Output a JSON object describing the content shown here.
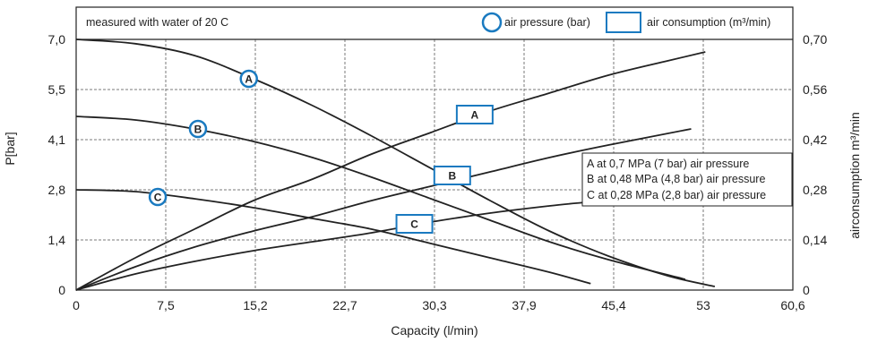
{
  "chart_data": {
    "type": "line",
    "note": "measured with water of 20 C",
    "legend": {
      "pressure_label": "air pressure (bar)",
      "consumption_label": "air consumption (m³/min)"
    },
    "xlabel": "Capacity (l/min)",
    "ylabel_left": "P[bar]",
    "ylabel_right": "airconsumption m³/min",
    "x_ticks": [
      "0",
      "7,5",
      "15,2",
      "22,7",
      "30,3",
      "37,9",
      "45,4",
      "53",
      "60,6"
    ],
    "y_left_ticks": [
      "0",
      "1,4",
      "2,8",
      "4,1",
      "5,5",
      "7,0"
    ],
    "y_right_ticks": [
      "0",
      "0,14",
      "0,28",
      "0,42",
      "0,56",
      "0,70"
    ],
    "xlim": [
      0,
      60.6
    ],
    "ylim_left": [
      0,
      7.0
    ],
    "ylim_right": [
      0,
      0.7
    ],
    "grid": true,
    "pressure_series": [
      {
        "name": "A",
        "label_at": [
          14.6,
          5.9
        ],
        "points": [
          [
            0,
            7.0
          ],
          [
            5,
            6.88
          ],
          [
            10,
            6.55
          ],
          [
            15,
            5.9
          ],
          [
            20,
            5.15
          ],
          [
            25,
            4.3
          ],
          [
            30,
            3.4
          ],
          [
            35,
            2.5
          ],
          [
            40,
            1.65
          ],
          [
            45,
            0.95
          ],
          [
            50,
            0.4
          ],
          [
            54,
            0.1
          ]
        ]
      },
      {
        "name": "B",
        "label_at": [
          10.3,
          4.5
        ],
        "points": [
          [
            0,
            4.85
          ],
          [
            5,
            4.75
          ],
          [
            10,
            4.5
          ],
          [
            15,
            4.15
          ],
          [
            20,
            3.7
          ],
          [
            25,
            3.15
          ],
          [
            30,
            2.55
          ],
          [
            35,
            1.95
          ],
          [
            40,
            1.35
          ],
          [
            45,
            0.85
          ],
          [
            51.5,
            0.3
          ]
        ]
      },
      {
        "name": "C",
        "label_at": [
          6.9,
          2.6
        ],
        "points": [
          [
            0,
            2.8
          ],
          [
            5,
            2.75
          ],
          [
            10,
            2.55
          ],
          [
            15,
            2.3
          ],
          [
            20,
            2.0
          ],
          [
            25,
            1.7
          ],
          [
            30,
            1.3
          ],
          [
            35,
            0.9
          ],
          [
            40,
            0.5
          ],
          [
            43.5,
            0.18
          ]
        ]
      }
    ],
    "consumption_series": [
      {
        "name": "A",
        "label_at": [
          33.7,
          0.49
        ],
        "points": [
          [
            0,
            0.0
          ],
          [
            5,
            0.09
          ],
          [
            10,
            0.17
          ],
          [
            15,
            0.25
          ],
          [
            20,
            0.31
          ],
          [
            25,
            0.38
          ],
          [
            30,
            0.44
          ],
          [
            35,
            0.5
          ],
          [
            40,
            0.55
          ],
          [
            45,
            0.6
          ],
          [
            50,
            0.64
          ],
          [
            53.2,
            0.665
          ]
        ]
      },
      {
        "name": "B",
        "label_at": [
          31.8,
          0.32
        ],
        "points": [
          [
            0,
            0.0
          ],
          [
            5,
            0.065
          ],
          [
            10,
            0.12
          ],
          [
            15,
            0.165
          ],
          [
            20,
            0.205
          ],
          [
            25,
            0.25
          ],
          [
            30,
            0.29
          ],
          [
            35,
            0.33
          ],
          [
            40,
            0.37
          ],
          [
            45,
            0.405
          ],
          [
            52,
            0.45
          ]
        ]
      },
      {
        "name": "C",
        "label_at": [
          28.6,
          0.185
        ],
        "points": [
          [
            0,
            0.0
          ],
          [
            5,
            0.045
          ],
          [
            10,
            0.08
          ],
          [
            15,
            0.11
          ],
          [
            20,
            0.135
          ],
          [
            25,
            0.16
          ],
          [
            30,
            0.19
          ],
          [
            35,
            0.215
          ],
          [
            40,
            0.235
          ],
          [
            43,
            0.245
          ]
        ]
      }
    ],
    "annotations": [
      "A  at 0,7 MPa (7 bar) air pressure",
      "B  at 0,48 MPa (4,8 bar) air pressure",
      "C  at 0,28 MPa (2,8 bar) air pressure"
    ],
    "colors": {
      "line": "#222222",
      "marker": "#1a7ac0",
      "grid": "#7a7a7a",
      "frame": "#222222"
    }
  }
}
